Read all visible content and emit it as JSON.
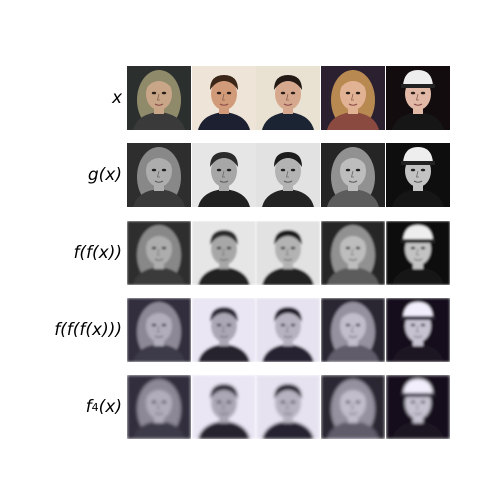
{
  "rows": [
    {
      "label": "x",
      "mode": "color",
      "blur": 0
    },
    {
      "label": "g(x)",
      "mode": "gray",
      "blur": 0
    },
    {
      "label": "f(f(x))",
      "mode": "gray",
      "blur": 1.1
    },
    {
      "label": "f(f(f(x)))",
      "mode": "tint",
      "blur": 1.3
    },
    {
      "label_base": "f",
      "label_sup": "4",
      "label_tail": "(x)",
      "mode": "tint",
      "blur": 1.5
    }
  ],
  "faces": [
    {
      "hair": "#8f8a6a",
      "skin": "#c9a688",
      "bg": "#2b2f2e",
      "shirt": "#3a3a3a",
      "hat": false,
      "long_hair": true
    },
    {
      "hair": "#3b2618",
      "skin": "#d19a78",
      "bg": "#eee4d8",
      "shirt": "#1c2030",
      "hat": false,
      "long_hair": false
    },
    {
      "hair": "#231a16",
      "skin": "#d6a88e",
      "bg": "#e9e2d2",
      "shirt": "#1b2433",
      "hat": false,
      "long_hair": false
    },
    {
      "hair": "#b88a52",
      "skin": "#e2b295",
      "bg": "#2a2030",
      "shirt": "#8a4a40",
      "hat": false,
      "long_hair": true
    },
    {
      "hair": "#1a1a1a",
      "skin": "#e1b9a6",
      "bg": "#120c0e",
      "shirt": "#161616",
      "hat": true,
      "hat_color": "#eeeeee",
      "long_hair": false
    }
  ]
}
